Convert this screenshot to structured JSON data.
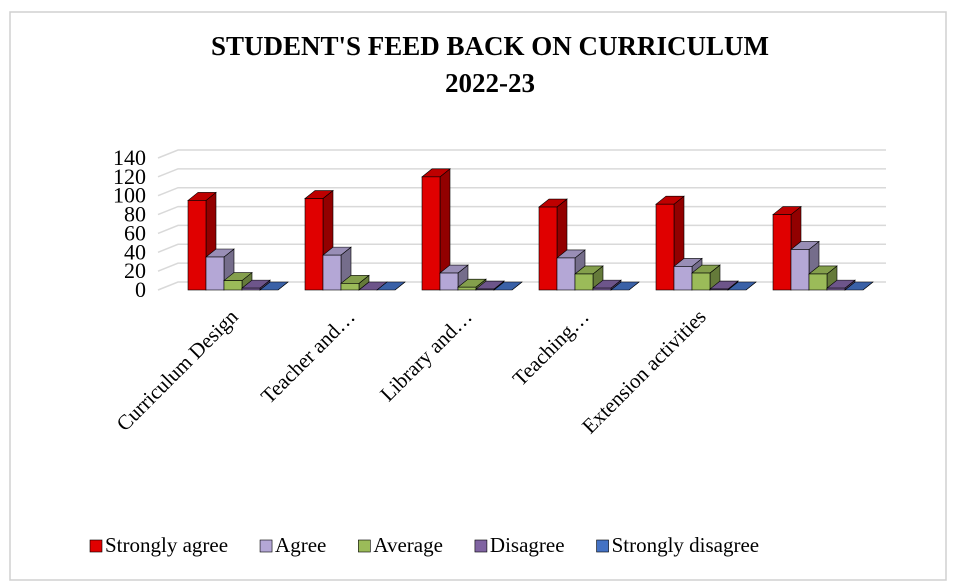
{
  "chart_data": {
    "type": "bar3d",
    "title": "STUDENT'S FEED BACK ON CURRICULUM",
    "subtitle": "2022-23",
    "categories": [
      "Curriculum Design",
      "Teacher and…",
      "Library and…",
      "Teaching…",
      "Extension activities",
      null
    ],
    "series": [
      {
        "name": "Strongly agree",
        "color": "#e00000",
        "values": [
          95,
          97,
          120,
          88,
          91,
          80
        ]
      },
      {
        "name": "Agree",
        "color": "#b4a7d6",
        "values": [
          35,
          37,
          18,
          34,
          25,
          43
        ]
      },
      {
        "name": "Average",
        "color": "#9bbb59",
        "values": [
          10,
          7,
          3,
          17,
          18,
          17
        ]
      },
      {
        "name": "Disagree",
        "color": "#8064a2",
        "values": [
          2,
          0,
          1,
          2,
          1,
          2
        ]
      },
      {
        "name": "Strongly disagree",
        "color": "#4472c4",
        "values": [
          0,
          0,
          0,
          0,
          0,
          0
        ]
      }
    ],
    "ylim": [
      0,
      140
    ],
    "yticks": [
      0,
      20,
      40,
      60,
      80,
      100,
      120,
      140
    ],
    "grid": true
  }
}
